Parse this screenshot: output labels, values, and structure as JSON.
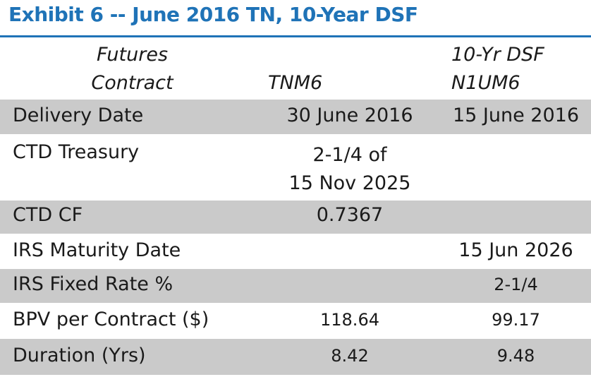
{
  "title": "Exhibit 6 -- June 2016 TN, 10-Year DSF",
  "header": {
    "label_line1": "Futures",
    "label_line2": "Contract",
    "col_tn": "TNM6",
    "col_dsf_line1": "10-Yr DSF",
    "col_dsf_line2": "N1UM6"
  },
  "rows": [
    {
      "label": "Delivery Date",
      "tn": "30 June 2016",
      "dsf": "15 June 2016"
    },
    {
      "label": "CTD Treasury",
      "tn_line1": "2-1/4 of",
      "tn_line2": "15 Nov 2025",
      "dsf": ""
    },
    {
      "label": "CTD CF",
      "tn": "0.7367",
      "dsf": ""
    },
    {
      "label": "IRS Maturity Date",
      "tn": "",
      "dsf": "15 Jun 2026"
    },
    {
      "label": "IRS Fixed Rate %",
      "tn": "",
      "dsf": "2-1/4"
    },
    {
      "label": "BPV per Contract ($)",
      "tn": "118.64",
      "dsf": "99.17"
    },
    {
      "label": "Duration (Yrs)",
      "tn": "8.42",
      "dsf": "9.48"
    }
  ]
}
